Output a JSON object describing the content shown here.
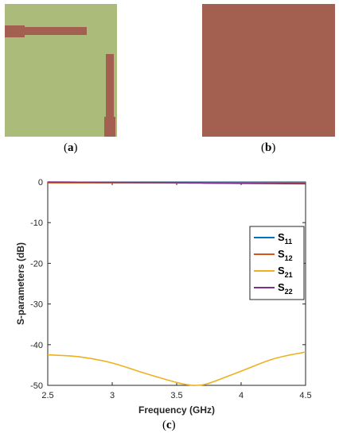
{
  "figure": {
    "label_a": "a",
    "label_b": "b",
    "label_c": "c",
    "substrate_color": "#abbb79",
    "copper_color": "#a35f4f"
  },
  "chart_data": {
    "type": "line",
    "xlabel": "Frequency (GHz)",
    "ylabel": "S-parameters (dB)",
    "xlim": [
      2.5,
      4.5
    ],
    "ylim": [
      -50,
      0
    ],
    "x_ticks": [
      "2.5",
      "3",
      "3.5",
      "4",
      "4.5"
    ],
    "y_ticks": [
      "0",
      "-10",
      "-20",
      "-30",
      "-40",
      "-50"
    ],
    "grid": false,
    "legend_position": "right",
    "x": [
      2.5,
      2.75,
      3.0,
      3.25,
      3.5,
      3.6,
      3.65,
      3.75,
      4.0,
      4.25,
      4.5
    ],
    "series": [
      {
        "name": "S",
        "sub": "11",
        "color": "#0072bd",
        "values": [
          -0.1,
          -0.1,
          -0.1,
          -0.1,
          -0.1,
          -0.1,
          -0.1,
          -0.1,
          -0.1,
          -0.1,
          -0.1
        ]
      },
      {
        "name": "S",
        "sub": "12",
        "color": "#d95319",
        "values": [
          -0.2,
          -0.2,
          -0.2,
          -0.2,
          -0.2,
          -0.2,
          -0.2,
          -0.2,
          -0.2,
          -0.2,
          -0.2
        ]
      },
      {
        "name": "S",
        "sub": "21",
        "color": "#edb120",
        "values": [
          -42.5,
          -43.0,
          -44.5,
          -47.0,
          -49.3,
          -49.9,
          -50.0,
          -49.5,
          -46.5,
          -43.5,
          -41.8
        ]
      },
      {
        "name": "S",
        "sub": "22",
        "color": "#7e2f8e",
        "values": [
          0.0,
          -0.05,
          -0.1,
          -0.15,
          -0.2,
          -0.25,
          -0.25,
          -0.3,
          -0.35,
          -0.4,
          -0.45
        ]
      }
    ]
  }
}
